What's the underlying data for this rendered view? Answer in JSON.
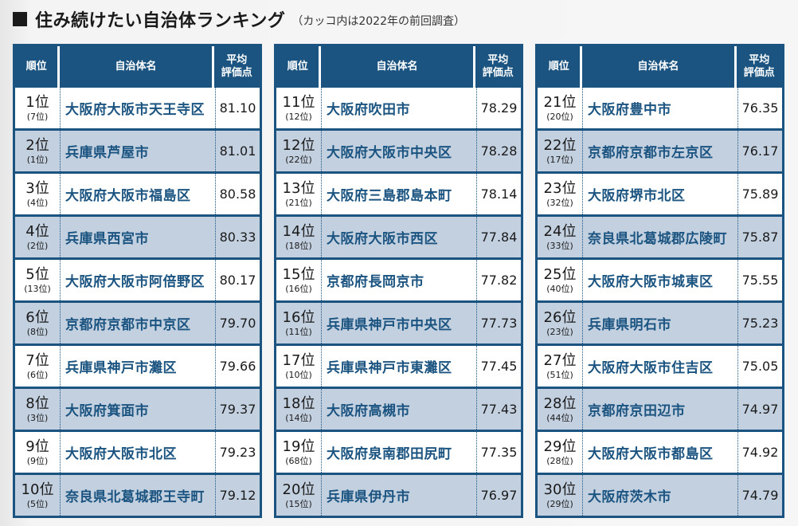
{
  "title": {
    "main": "住み続けたい自治体ランキング",
    "note": "（カッコ内は2022年の前回調査）"
  },
  "headers": {
    "rank": "順位",
    "name": "自治体名",
    "score_line1": "平均",
    "score_line2": "評価点"
  },
  "tables": [
    {
      "rows": [
        {
          "rank": "1位",
          "prev": "(7位)",
          "name": "大阪府大阪市天王寺区",
          "score": "81.10"
        },
        {
          "rank": "2位",
          "prev": "(1位)",
          "name": "兵庫県芦屋市",
          "score": "81.01"
        },
        {
          "rank": "3位",
          "prev": "(4位)",
          "name": "大阪府大阪市福島区",
          "score": "80.58"
        },
        {
          "rank": "4位",
          "prev": "(2位)",
          "name": "兵庫県西宮市",
          "score": "80.33"
        },
        {
          "rank": "5位",
          "prev": "(13位)",
          "name": "大阪府大阪市阿倍野区",
          "score": "80.17"
        },
        {
          "rank": "6位",
          "prev": "(8位)",
          "name": "京都府京都市中京区",
          "score": "79.70"
        },
        {
          "rank": "7位",
          "prev": "(6位)",
          "name": "兵庫県神戸市灘区",
          "score": "79.66"
        },
        {
          "rank": "8位",
          "prev": "(3位)",
          "name": "大阪府箕面市",
          "score": "79.37"
        },
        {
          "rank": "9位",
          "prev": "(9位)",
          "name": "大阪府大阪市北区",
          "score": "79.23"
        },
        {
          "rank": "10位",
          "prev": "(5位)",
          "name": "奈良県北葛城郡王寺町",
          "score": "79.12"
        }
      ]
    },
    {
      "rows": [
        {
          "rank": "11位",
          "prev": "(12位)",
          "name": "大阪府吹田市",
          "score": "78.29"
        },
        {
          "rank": "12位",
          "prev": "(22位)",
          "name": "大阪府大阪市中央区",
          "score": "78.28"
        },
        {
          "rank": "13位",
          "prev": "(21位)",
          "name": "大阪府三島郡島本町",
          "score": "78.14"
        },
        {
          "rank": "14位",
          "prev": "(18位)",
          "name": "大阪府大阪市西区",
          "score": "77.84"
        },
        {
          "rank": "15位",
          "prev": "(16位)",
          "name": "京都府長岡京市",
          "score": "77.82"
        },
        {
          "rank": "16位",
          "prev": "(11位)",
          "name": "兵庫県神戸市中央区",
          "score": "77.73"
        },
        {
          "rank": "17位",
          "prev": "(10位)",
          "name": "兵庫県神戸市東灘区",
          "score": "77.45"
        },
        {
          "rank": "18位",
          "prev": "(14位)",
          "name": "大阪府高槻市",
          "score": "77.43"
        },
        {
          "rank": "19位",
          "prev": "(68位)",
          "name": "大阪府泉南郡田尻町",
          "score": "77.35"
        },
        {
          "rank": "20位",
          "prev": "(15位)",
          "name": "兵庫県伊丹市",
          "score": "76.97"
        }
      ]
    },
    {
      "rows": [
        {
          "rank": "21位",
          "prev": "(20位)",
          "name": "大阪府豊中市",
          "score": "76.35"
        },
        {
          "rank": "22位",
          "prev": "(17位)",
          "name": "京都府京都市左京区",
          "score": "76.17"
        },
        {
          "rank": "23位",
          "prev": "(32位)",
          "name": "大阪府堺市北区",
          "score": "75.89"
        },
        {
          "rank": "24位",
          "prev": "(33位)",
          "name": "奈良県北葛城郡広陵町",
          "score": "75.87"
        },
        {
          "rank": "25位",
          "prev": "(40位)",
          "name": "大阪府大阪市城東区",
          "score": "75.55"
        },
        {
          "rank": "26位",
          "prev": "(23位)",
          "name": "兵庫県明石市",
          "score": "75.23"
        },
        {
          "rank": "27位",
          "prev": "(51位)",
          "name": "大阪府大阪市住吉区",
          "score": "75.05"
        },
        {
          "rank": "28位",
          "prev": "(44位)",
          "name": "京都府京田辺市",
          "score": "74.97"
        },
        {
          "rank": "29位",
          "prev": "(28位)",
          "name": "大阪府大阪市都島区",
          "score": "74.92"
        },
        {
          "rank": "30位",
          "prev": "(29位)",
          "name": "大阪府茨木市",
          "score": "74.79"
        }
      ]
    }
  ],
  "colors": {
    "header_bg": "#1b5480",
    "name_text": "#1b5480",
    "stripe_bg": "#c3d0e0",
    "row_bg": "#ffffff"
  }
}
